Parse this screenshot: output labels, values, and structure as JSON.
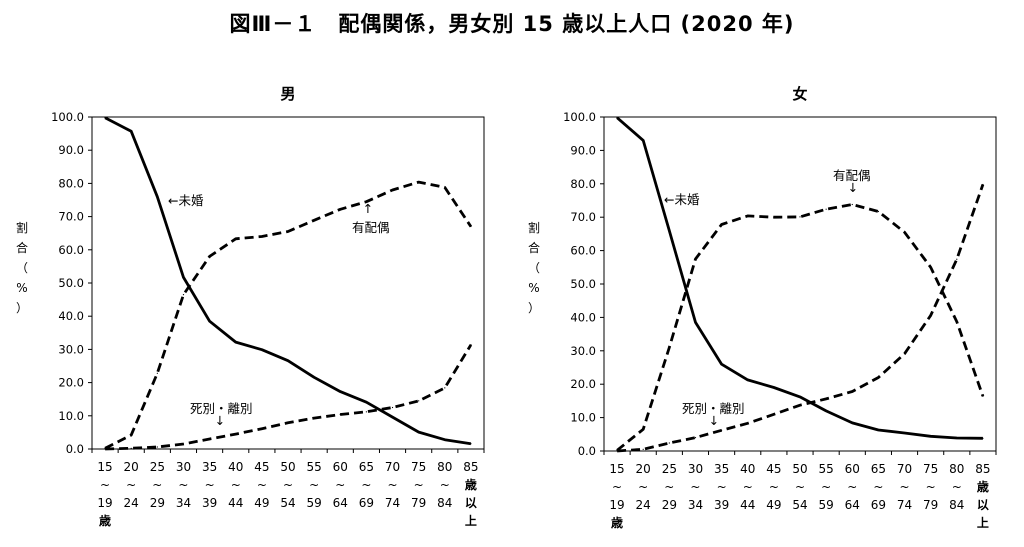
{
  "figure_title": "図Ⅲ－１　配偶関係，男女別 15 歳以上人口 (2020 年)",
  "y_axis_label_chars": [
    "割",
    "合",
    "（",
    "%",
    "）"
  ],
  "y_ticks": [
    "100.0",
    "90.0",
    "80.0",
    "70.0",
    "60.0",
    "50.0",
    "40.0",
    "30.0",
    "20.0",
    "10.0",
    "0.0"
  ],
  "x_tick_labels": [
    [
      "15",
      "~",
      "19",
      "歳"
    ],
    [
      "20",
      "~",
      "24"
    ],
    [
      "25",
      "~",
      "29"
    ],
    [
      "30",
      "~",
      "34"
    ],
    [
      "35",
      "~",
      "39"
    ],
    [
      "40",
      "~",
      "44"
    ],
    [
      "45",
      "~",
      "49"
    ],
    [
      "50",
      "~",
      "54"
    ],
    [
      "55",
      "~",
      "59"
    ],
    [
      "60",
      "~",
      "64"
    ],
    [
      "65",
      "~",
      "69"
    ],
    [
      "70",
      "~",
      "74"
    ],
    [
      "75",
      "~",
      "79"
    ],
    [
      "80",
      "~",
      "84"
    ],
    [
      "85",
      "歳",
      "以",
      "上"
    ]
  ],
  "chart_data": [
    {
      "type": "line",
      "title": "男",
      "ylim": [
        0,
        100
      ],
      "categories": [
        "15~19歳",
        "20~24",
        "25~29",
        "30~34",
        "35~39",
        "40~44",
        "45~49",
        "50~54",
        "55~59",
        "60~64",
        "65~69",
        "70~74",
        "75~79",
        "80~84",
        "85歳以上"
      ],
      "series": [
        {
          "name": "未婚",
          "style": "solid",
          "values": [
            99.8,
            95.7,
            76.0,
            51.7,
            38.5,
            32.2,
            29.9,
            26.6,
            21.6,
            17.3,
            14.1,
            9.6,
            5.1,
            2.8,
            1.6
          ]
        },
        {
          "name": "有配偶",
          "style": "dashed",
          "values": [
            0.2,
            4.2,
            22.8,
            46.5,
            58.0,
            63.3,
            64.0,
            65.5,
            68.9,
            72.2,
            74.5,
            78.0,
            80.4,
            78.8,
            67.0
          ]
        },
        {
          "name": "死別・離別",
          "style": "dashed",
          "values": [
            0.0,
            0.2,
            0.6,
            1.5,
            3.0,
            4.5,
            6.1,
            7.9,
            9.3,
            10.4,
            11.2,
            12.5,
            14.5,
            18.4,
            31.4
          ]
        }
      ],
      "annotations": {
        "never_married": "←未婚",
        "married": "有配偶",
        "married_arrow": "↑",
        "widowed": "死別・離別",
        "widowed_arrow": "↓"
      }
    },
    {
      "type": "line",
      "title": "女",
      "ylim": [
        0,
        100
      ],
      "categories": [
        "15~19歳",
        "20~24",
        "25~29",
        "30~34",
        "35~39",
        "40~44",
        "45~49",
        "50~54",
        "55~59",
        "60~64",
        "65~69",
        "70~74",
        "75~79",
        "80~84",
        "85歳以上"
      ],
      "series": [
        {
          "name": "未婚",
          "style": "solid",
          "values": [
            99.8,
            93.0,
            66.0,
            38.5,
            26.0,
            21.3,
            19.0,
            16.2,
            12.0,
            8.4,
            6.3,
            5.4,
            4.4,
            3.9,
            3.8
          ]
        },
        {
          "name": "有配偶",
          "style": "dashed",
          "values": [
            0.2,
            6.5,
            31.0,
            57.5,
            67.8,
            70.4,
            70.0,
            70.1,
            72.4,
            73.8,
            71.7,
            65.5,
            55.0,
            38.7,
            16.4
          ]
        },
        {
          "name": "死別・離別",
          "style": "dashed",
          "values": [
            0.0,
            0.5,
            2.4,
            4.0,
            6.2,
            8.3,
            11.0,
            13.7,
            15.6,
            17.8,
            22.0,
            29.1,
            40.6,
            57.4,
            79.8
          ]
        }
      ],
      "annotations": {
        "never_married": "←未婚",
        "married": "有配偶",
        "married_arrow": "↓",
        "widowed": "死別・離別",
        "widowed_arrow": "↓"
      }
    }
  ]
}
